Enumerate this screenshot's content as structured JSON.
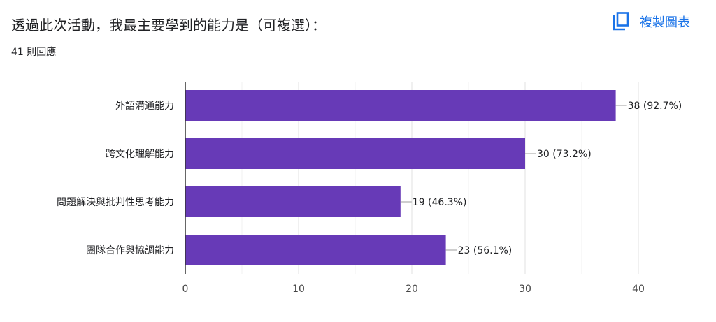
{
  "header": {
    "title": "透過此次活動，我最主要學到的能力是（可複選）：",
    "response_count": "41 則回應",
    "copy_chart_label": "複製圖表",
    "copy_icon": "copy-icon"
  },
  "colors": {
    "bar": "#673ab7",
    "link": "#1a73e8",
    "grid": "#e0e0e0",
    "axis": "#333333",
    "text": "#202124"
  },
  "chart_data": {
    "type": "bar",
    "orientation": "horizontal",
    "categories": [
      "外語溝通能力",
      "跨文化理解能力",
      "問題解決與批判性思考能力",
      "團隊合作與協調能力"
    ],
    "values": [
      38,
      30,
      19,
      23
    ],
    "data_labels": [
      "38 (92.7%)",
      "30 (73.2%)",
      "19 (46.3%)",
      "23 (56.1%)"
    ],
    "xlim": [
      0,
      40
    ],
    "xticks": [
      0,
      10,
      20,
      30,
      40
    ],
    "grid": true
  }
}
